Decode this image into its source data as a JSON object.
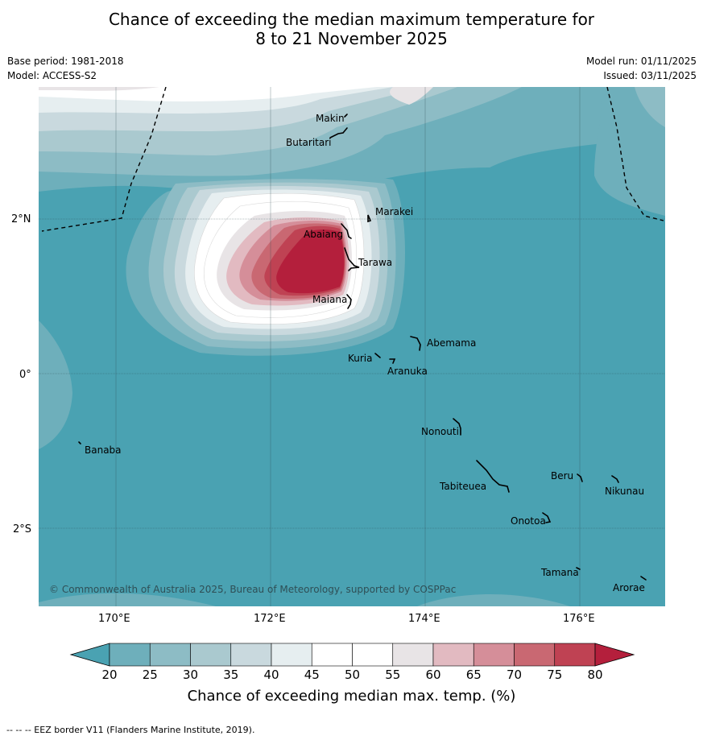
{
  "title": {
    "line1": "Chance of exceeding the median maximum temperature for",
    "line2": "8 to 21 November 2025"
  },
  "meta": {
    "base_period": "Base period: 1981-2018",
    "model": "Model: ACCESS-S2",
    "model_run": "Model run: 01/11/2025",
    "issued": "Issued: 03/11/2025"
  },
  "map": {
    "copyright": "© Commonwealth of Australia 2025, Bureau of Meteorology, supported by COSPPac",
    "lat_labels": [
      "2°N",
      "0°",
      "2°S"
    ],
    "lon_labels": [
      "170°E",
      "172°E",
      "174°E",
      "176°E"
    ],
    "places": {
      "makin": "Makin",
      "butaritari": "Butaritari",
      "marakei": "Marakei",
      "abaiang": "Abaiang",
      "tarawa": "Tarawa",
      "maiana": "Maiana",
      "abemama": "Abemama",
      "kuria": "Kuria",
      "aranuka": "Aranuka",
      "nonouti": "Nonouti",
      "banaba": "Banaba",
      "beru": "Beru",
      "tabiteuea": "Tabiteuea",
      "nikunau": "Nikunau",
      "onotoa": "Onotoa",
      "tamana": "Tamana",
      "arorae": "Arorae"
    },
    "colors": {
      "ocean_base": "#4aa2b2",
      "hot_core": "#b41f3c"
    }
  },
  "colorbar": {
    "title": "Chance of exceeding median max. temp. (%)",
    "ticks": [
      "20",
      "25",
      "30",
      "35",
      "40",
      "45",
      "50",
      "55",
      "60",
      "65",
      "70",
      "75",
      "80"
    ],
    "colors": [
      "#4aa2b2",
      "#6eafbb",
      "#8dbcc5",
      "#aac9cf",
      "#c9d9de",
      "#e6eef0",
      "#ffffff",
      "#ffffff",
      "#e8e4e6",
      "#e2bac1",
      "#d58e99",
      "#c96872",
      "#bf4253",
      "#b41f3c"
    ]
  },
  "footnote": "-- -- -- EEZ border V11 (Flanders Marine Institute, 2019)."
}
